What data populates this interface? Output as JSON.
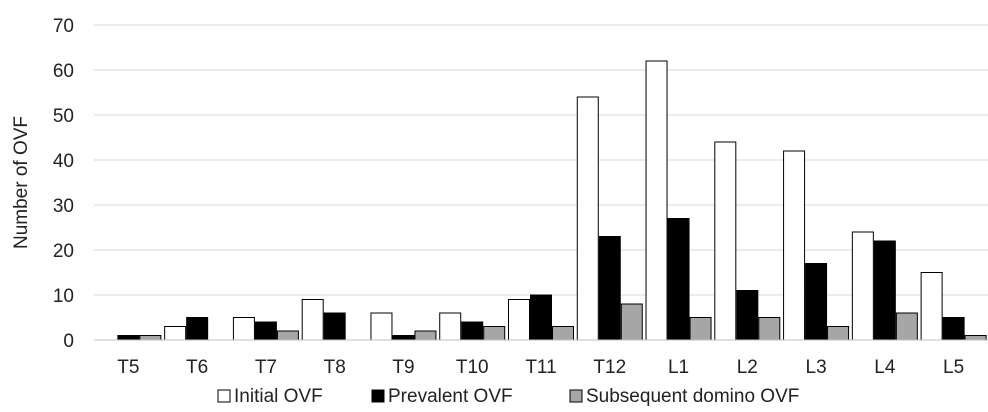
{
  "chart_data": {
    "type": "bar",
    "title": "",
    "xlabel": "",
    "ylabel": "Number of OVF",
    "ylim": [
      0,
      70
    ],
    "yticks": [
      "0",
      "10",
      "20",
      "30",
      "40",
      "50",
      "60",
      "70"
    ],
    "grid": true,
    "legend_position": "bottom",
    "categories": [
      "T5",
      "T6",
      "T7",
      "T8",
      "T9",
      "T10",
      "T11",
      "T12",
      "L1",
      "L2",
      "L3",
      "L4",
      "L5"
    ],
    "series": [
      {
        "name": "Initial OVF",
        "color": "#ffffff",
        "values": [
          0,
          3,
          5,
          9,
          6,
          6,
          9,
          54,
          62,
          44,
          42,
          24,
          15
        ]
      },
      {
        "name": "Prevalent OVF",
        "color": "#000000",
        "values": [
          1,
          5,
          4,
          6,
          1,
          4,
          10,
          23,
          27,
          11,
          17,
          22,
          5
        ]
      },
      {
        "name": "Subsequent domino OVF",
        "color": "#a6a6a6",
        "values": [
          1,
          0,
          2,
          0,
          2,
          3,
          3,
          8,
          5,
          5,
          3,
          6,
          1
        ]
      }
    ]
  }
}
